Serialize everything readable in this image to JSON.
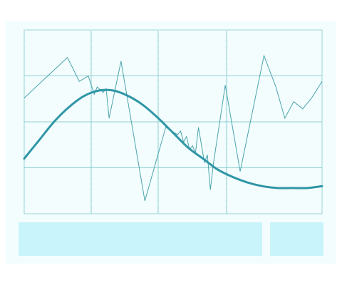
{
  "colors": {
    "background": "#ffffff",
    "card": "#f3fdfe",
    "grid": "#8fcfd3",
    "plot_border": "#9ad3d6",
    "thin_series": "#4aa3ab",
    "smooth_series": "#2f96a5",
    "panel": "#c9f4fb"
  },
  "chart_data": {
    "type": "line",
    "title": "",
    "xlabel": "",
    "ylabel": "",
    "xlim": [
      0,
      100
    ],
    "ylim": [
      0,
      100
    ],
    "grid": true,
    "legend": "none",
    "series": [
      {
        "style": "thin",
        "x": [
          0,
          14.5,
          18.5,
          21.5,
          23.5,
          24.5,
          26.5,
          27.5,
          28.5,
          32.5,
          40.5,
          47.5,
          51.5,
          52.5,
          53.5,
          54.5,
          55.5,
          56.5,
          57.5,
          58.5,
          60.5,
          61.5,
          62.5,
          63.5,
          67.5,
          72.5,
          80.5,
          84.5,
          87.5,
          90.5,
          93.5,
          96.5,
          100
        ],
        "y": [
          63,
          85,
          72,
          75,
          65,
          69,
          66,
          68,
          52,
          83,
          7,
          47,
          43,
          45,
          39,
          42,
          35,
          37,
          33,
          47,
          28,
          32,
          13,
          27,
          70,
          23,
          86,
          69,
          52,
          61,
          57,
          63,
          72
        ]
      },
      {
        "style": "thick-smooth",
        "x": [
          0,
          5,
          10,
          15,
          20,
          25,
          30,
          35,
          40,
          45,
          50,
          55,
          60,
          65,
          70,
          75,
          80,
          85,
          90,
          95,
          100
        ],
        "y": [
          30,
          40,
          50,
          58,
          64,
          67,
          67,
          64,
          59,
          52,
          44,
          36,
          30,
          24,
          20,
          17,
          15,
          14,
          14,
          14,
          15
        ]
      }
    ]
  }
}
